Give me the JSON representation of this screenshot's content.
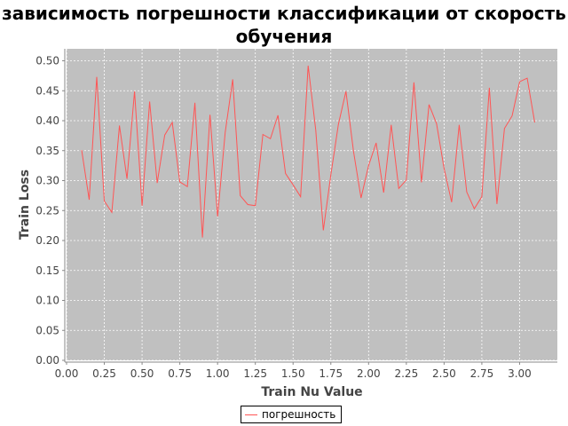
{
  "chart_data": {
    "type": "line",
    "title": "зависимость погрешности классификации от скорость обучения",
    "xlabel": "Train Nu Value",
    "ylabel": "Train Loss",
    "xlim": [
      0.0,
      3.25
    ],
    "ylim": [
      0.0,
      0.52
    ],
    "x_ticks": [
      "0.00",
      "0.25",
      "0.50",
      "0.75",
      "1.00",
      "1.25",
      "1.50",
      "1.75",
      "2.00",
      "2.25",
      "2.50",
      "2.75",
      "3.00"
    ],
    "y_ticks": [
      "0.00",
      "0.05",
      "0.10",
      "0.15",
      "0.20",
      "0.25",
      "0.30",
      "0.35",
      "0.40",
      "0.45",
      "0.50"
    ],
    "grid": true,
    "legend_position": "bottom",
    "plot_background": "#c0c0c0",
    "series": [
      {
        "name": "погрешность",
        "color": "#ff5555",
        "x": [
          0.1,
          0.15,
          0.2,
          0.25,
          0.3,
          0.35,
          0.4,
          0.45,
          0.5,
          0.55,
          0.6,
          0.65,
          0.7,
          0.75,
          0.8,
          0.85,
          0.9,
          0.95,
          1.0,
          1.05,
          1.1,
          1.15,
          1.2,
          1.25,
          1.3,
          1.35,
          1.4,
          1.45,
          1.5,
          1.55,
          1.6,
          1.65,
          1.7,
          1.75,
          1.8,
          1.85,
          1.9,
          1.95,
          2.0,
          2.05,
          2.1,
          2.15,
          2.2,
          2.25,
          2.3,
          2.35,
          2.4,
          2.45,
          2.5,
          2.55,
          2.6,
          2.65,
          2.7,
          2.75,
          2.8,
          2.85,
          2.9,
          2.95,
          3.0,
          3.05,
          3.1
        ],
        "y": [
          0.351,
          0.268,
          0.473,
          0.266,
          0.247,
          0.392,
          0.303,
          0.449,
          0.258,
          0.432,
          0.296,
          0.376,
          0.397,
          0.298,
          0.29,
          0.43,
          0.205,
          0.41,
          0.24,
          0.38,
          0.469,
          0.275,
          0.26,
          0.258,
          0.377,
          0.37,
          0.409,
          0.312,
          0.293,
          0.273,
          0.492,
          0.384,
          0.217,
          0.31,
          0.394,
          0.449,
          0.349,
          0.271,
          0.325,
          0.363,
          0.28,
          0.393,
          0.287,
          0.301,
          0.464,
          0.297,
          0.427,
          0.395,
          0.32,
          0.264,
          0.393,
          0.281,
          0.253,
          0.273,
          0.455,
          0.261,
          0.387,
          0.408,
          0.465,
          0.471,
          0.397
        ]
      }
    ]
  }
}
